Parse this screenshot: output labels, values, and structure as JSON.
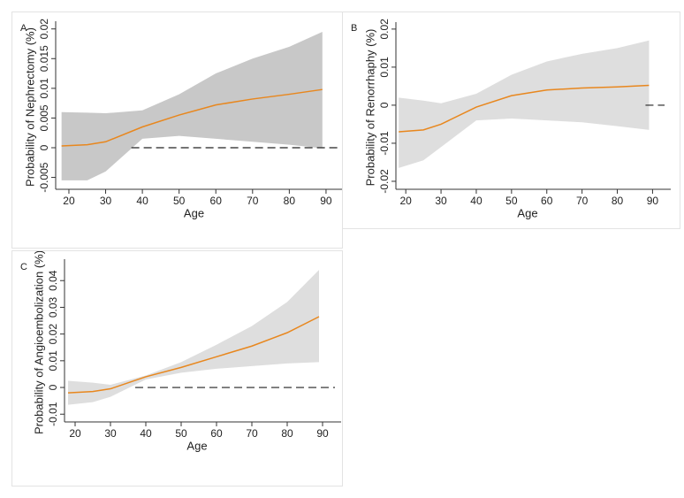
{
  "chart_data": [
    {
      "type": "line",
      "label": "A",
      "ylabel": "Probability of Nephrectomy (%)",
      "xlabel": "Age",
      "x": [
        18,
        25,
        30,
        40,
        50,
        60,
        70,
        80,
        89
      ],
      "values": [
        0.0003,
        0.0005,
        0.001,
        0.0035,
        0.0055,
        0.0072,
        0.0082,
        0.009,
        0.0098
      ],
      "upper": [
        0.006,
        0.0059,
        0.0058,
        0.0063,
        0.009,
        0.0125,
        0.015,
        0.017,
        0.0195
      ],
      "lower": [
        -0.0055,
        -0.0055,
        -0.004,
        0.0015,
        0.002,
        0.0015,
        0.001,
        0.0005,
        -0.0001
      ],
      "color": "#e8871e",
      "band_color": "#c8c8c8",
      "reference": {
        "y": 0,
        "from_x": 37
      },
      "xlim": [
        16.4,
        91.7
      ],
      "xticks": [
        20,
        30,
        40,
        50,
        60,
        70,
        80,
        90
      ],
      "ylim": [
        -0.007,
        0.0207
      ],
      "yticks": [
        -0.005,
        0,
        0.005,
        0.01,
        0.015,
        0.02
      ]
    },
    {
      "type": "line",
      "label": "B",
      "ylabel": "Probability of Renorrhaphy (%)",
      "xlabel": "Age",
      "x": [
        18,
        25,
        30,
        40,
        50,
        60,
        70,
        80,
        89
      ],
      "values": [
        -0.007,
        -0.0065,
        -0.005,
        -0.0005,
        0.0025,
        0.004,
        0.0045,
        0.0048,
        0.0052
      ],
      "upper": [
        0.002,
        0.0012,
        0.0005,
        0.003,
        0.008,
        0.0115,
        0.0135,
        0.015,
        0.017
      ],
      "lower": [
        -0.0165,
        -0.0145,
        -0.011,
        -0.004,
        -0.0035,
        -0.004,
        -0.0045,
        -0.0055,
        -0.0065
      ],
      "color": "#e8871e",
      "band_color": "#dedede",
      "reference": {
        "y": 0,
        "from_x": 88
      },
      "xlim": [
        17.2,
        91.9
      ],
      "xticks": [
        20,
        30,
        40,
        50,
        60,
        70,
        80,
        90
      ],
      "ylim": [
        -0.0221,
        0.0209
      ],
      "yticks": [
        -0.02,
        -0.01,
        0,
        0.01,
        0.02
      ]
    },
    {
      "type": "line",
      "label": "C",
      "ylabel": "Probability of Angioembolization (%)",
      "xlabel": "Age",
      "x": [
        18,
        25,
        30,
        40,
        50,
        60,
        70,
        80,
        89
      ],
      "values": [
        -0.002,
        -0.0015,
        -0.0005,
        0.004,
        0.0075,
        0.0115,
        0.0155,
        0.0205,
        0.0265
      ],
      "upper": [
        0.0025,
        0.0018,
        0.001,
        0.0045,
        0.0095,
        0.016,
        0.023,
        0.032,
        0.044
      ],
      "lower": [
        -0.0065,
        -0.0055,
        -0.0035,
        0.003,
        0.0055,
        0.007,
        0.008,
        0.009,
        0.0095
      ],
      "color": "#e8871e",
      "band_color": "#dedede",
      "reference": {
        "y": 0,
        "from_x": 37
      },
      "xlim": [
        17,
        92
      ],
      "xticks": [
        20,
        30,
        40,
        50,
        60,
        70,
        80,
        90
      ],
      "ylim": [
        -0.0129,
        0.0467
      ],
      "yticks": [
        -0.01,
        0,
        0.01,
        0.02,
        0.03,
        0.04
      ]
    }
  ]
}
